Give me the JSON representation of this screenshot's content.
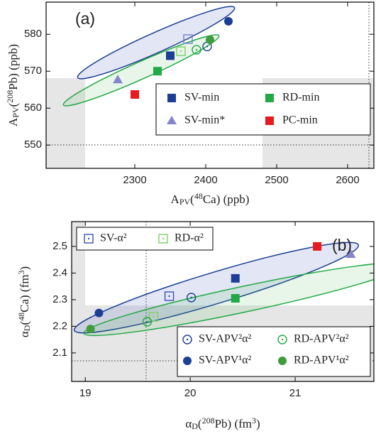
{
  "chart_data": [
    {
      "type": "scatter",
      "panel_label": "(a)",
      "x_label": [
        {
          "text": "A"
        },
        {
          "text": "PV",
          "sub": true
        },
        {
          "text": "("
        },
        {
          "text": "48",
          "sup": true
        },
        {
          "text": "Ca) (ppb)"
        }
      ],
      "y_label": [
        {
          "text": "A"
        },
        {
          "text": "PV",
          "sub": true
        },
        {
          "text": "("
        },
        {
          "text": "208",
          "sup": true
        },
        {
          "text": "Pb) (ppb)"
        }
      ],
      "xlim": [
        2175,
        2637
      ],
      "ylim": [
        543.7,
        588.7
      ],
      "xticks": [
        2300,
        2400,
        2500,
        2600
      ],
      "yticks": [
        550,
        560,
        570,
        580
      ],
      "series": [
        {
          "name": "SV-min",
          "color": "#1c3f95",
          "marker": "square",
          "fill": "filled",
          "legend": "lower-right",
          "x": [
            2350
          ],
          "y": [
            574.2
          ]
        },
        {
          "name": "RD-min",
          "color": "#22a845",
          "marker": "square",
          "fill": "filled",
          "legend": "lower-right",
          "x": [
            2332
          ],
          "y": [
            570
          ]
        },
        {
          "name": "SV-min*",
          "color": "#8585cc",
          "marker": "triangle",
          "fill": "filled",
          "legend": "lower-right",
          "x": [
            2276
          ],
          "y": [
            567.7
          ]
        },
        {
          "name": "PC-min",
          "color": "#e8191f",
          "marker": "square",
          "fill": "filled",
          "legend": "lower-right",
          "x": [
            2300
          ],
          "y": [
            563.7
          ]
        },
        {
          "color": "#6f82cf",
          "marker": "square",
          "fill": "open",
          "x": [
            2375
          ],
          "y": [
            578.7
          ]
        },
        {
          "color": "#1c3f95",
          "marker": "circle",
          "fill": "filled",
          "x": [
            2432
          ],
          "y": [
            583.5
          ]
        },
        {
          "color": "#1c3f95",
          "marker": "circle",
          "fill": "open",
          "x": [
            2402
          ],
          "y": [
            576.7
          ]
        },
        {
          "color": "#7fcf6a",
          "marker": "square",
          "fill": "open",
          "x": [
            2365
          ],
          "y": [
            575.4
          ]
        },
        {
          "color": "#22a845",
          "marker": "circle",
          "fill": "open",
          "x": [
            2387
          ],
          "y": [
            575.8
          ]
        },
        {
          "color": "#3e9b3e",
          "marker": "circle",
          "fill": "filled",
          "x": [
            2406
          ],
          "y": [
            578.5
          ]
        }
      ]
    },
    {
      "type": "scatter",
      "panel_label": "(b)",
      "x_label": [
        {
          "text": "α"
        },
        {
          "text": "D",
          "sub": true
        },
        {
          "text": "("
        },
        {
          "text": "208",
          "sup": true
        },
        {
          "text": "Pb) (fm"
        },
        {
          "text": "3",
          "sup": true
        },
        {
          "text": ")"
        }
      ],
      "y_label": [
        {
          "text": "α"
        },
        {
          "text": "D",
          "sub": true
        },
        {
          "text": "("
        },
        {
          "text": "48",
          "sup": true
        },
        {
          "text": "Ca) (fm"
        },
        {
          "text": "3",
          "sup": true
        },
        {
          "text": ")"
        }
      ],
      "xlim": [
        18.87,
        21.75
      ],
      "ylim": [
        1.993,
        2.593
      ],
      "xticks": [
        19,
        20,
        21
      ],
      "yticks": [
        2.1,
        2.2,
        2.3,
        2.4,
        2.5
      ],
      "series": [
        {
          "name": "SV-α²",
          "color": "#3b55b0",
          "marker": "square",
          "fill": "open",
          "legend": "upper-left",
          "x": [
            19.8
          ],
          "y": [
            2.313
          ]
        },
        {
          "name": "RD-α²",
          "color": "#7fcf6a",
          "marker": "square",
          "fill": "open",
          "legend": "upper-left",
          "x": [
            19.65
          ],
          "y": [
            2.236
          ]
        },
        {
          "name": "SV-APV²α²",
          "color": "#1c3f95",
          "marker": "circle",
          "fill": "open",
          "legend": "lower-right",
          "x": [
            20.01
          ],
          "y": [
            2.308
          ]
        },
        {
          "name": "RD-APV²α²",
          "color": "#22a845",
          "marker": "circle",
          "fill": "open",
          "legend": "lower-right",
          "x": [
            19.59
          ],
          "y": [
            2.217
          ]
        },
        {
          "name": "SV-APV¹α²",
          "color": "#1c3f95",
          "marker": "circle",
          "fill": "filled",
          "legend": "lower-right",
          "x": [
            19.13
          ],
          "y": [
            2.25
          ]
        },
        {
          "name": "RD-APV¹α²",
          "color": "#3e9b3e",
          "marker": "circle",
          "fill": "filled",
          "legend": "lower-right",
          "x": [
            19.05
          ],
          "y": [
            2.19
          ]
        },
        {
          "color": "#1c3f95",
          "marker": "square",
          "fill": "filled",
          "x": [
            20.43
          ],
          "y": [
            2.38
          ]
        },
        {
          "color": "#22a845",
          "marker": "square",
          "fill": "filled",
          "x": [
            20.43
          ],
          "y": [
            2.305
          ]
        },
        {
          "color": "#e8191f",
          "marker": "square",
          "fill": "filled",
          "x": [
            21.21
          ],
          "y": [
            2.5
          ]
        },
        {
          "color": "#8585cc",
          "marker": "triangle",
          "fill": "filled",
          "x": [
            21.53
          ],
          "y": [
            2.47
          ]
        }
      ]
    }
  ]
}
